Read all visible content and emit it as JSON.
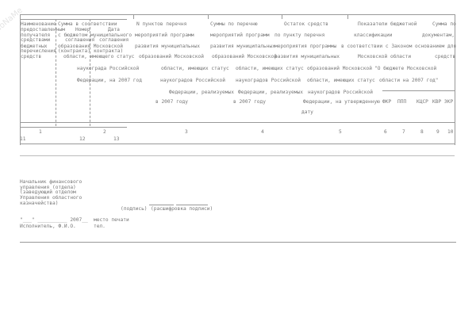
{
  "watermark": "NoNaMe",
  "header": {
    "r1": [
      "Наименование",
      "Сумма в соответствии",
      "N пунктов перечня",
      "Суммы по перечню",
      "Остаток средств",
      "Показатели бюджетной",
      "Сумма по"
    ],
    "r2": [
      "предоставленным",
      "Номер",
      "Дата"
    ],
    "r3": [
      "получателя",
      "с бюджетом муниципального",
      "мероприятий программ",
      "мероприятий программ",
      "по пункту перечня",
      "классификации",
      "документам,"
    ],
    "r4": [
      "средствами",
      "соглашения",
      "соглашения"
    ],
    "r5": [
      "бюджетных",
      "образования Московской",
      "развития муниципальных",
      "развития муниципальных",
      "мероприятия программы",
      "в соответствии с Законом",
      "основанием для"
    ],
    "r6": [
      "перечисления",
      "(контракта)",
      "контракта)"
    ],
    "r7": [
      "средств",
      "области, имеющего статус",
      "образований Московской",
      "образований Московской",
      "развития муниципальных",
      "Московской области",
      "средств"
    ],
    "r8": [
      "наукограда Российской",
      "области, имеющих статус",
      "области, имеющих статус",
      "образований Московской",
      "\"О бюджете Московской"
    ],
    "r9": [
      "Федерации, на 2007 год",
      "наукоградов Российской",
      "наукоградов Российской",
      "области, имеющих статус",
      "области на 2007 год\""
    ],
    "r10": [
      "Федерации, реализуемых",
      "Федерации, реализуемых",
      "наукоградов Российской"
    ],
    "r11": [
      "в 2007 году",
      "в 2007 году",
      "Федерации, на утвержденную",
      "ФКР",
      "ППП",
      "КЦСР",
      "КВР",
      "ЭКР"
    ],
    "r12": [
      "дату"
    ]
  },
  "column_numbers": [
    "1",
    "2",
    "3",
    "4",
    "5",
    "6",
    "7",
    "8",
    "9",
    "10",
    "11",
    "12",
    "13"
  ],
  "footer": {
    "signer": [
      "Начальник финансового",
      "управления (отдела)",
      "(заведующий отделом",
      "Управления областного",
      "казначейства)"
    ],
    "signature": "(подпись)",
    "signature_decode": "(расшифровка подписи)",
    "date_line": "\"___\" __________ 2007__",
    "stamp": "место печати",
    "executor": "Исполнитель, Ф.И.О.",
    "phone": "тел."
  }
}
